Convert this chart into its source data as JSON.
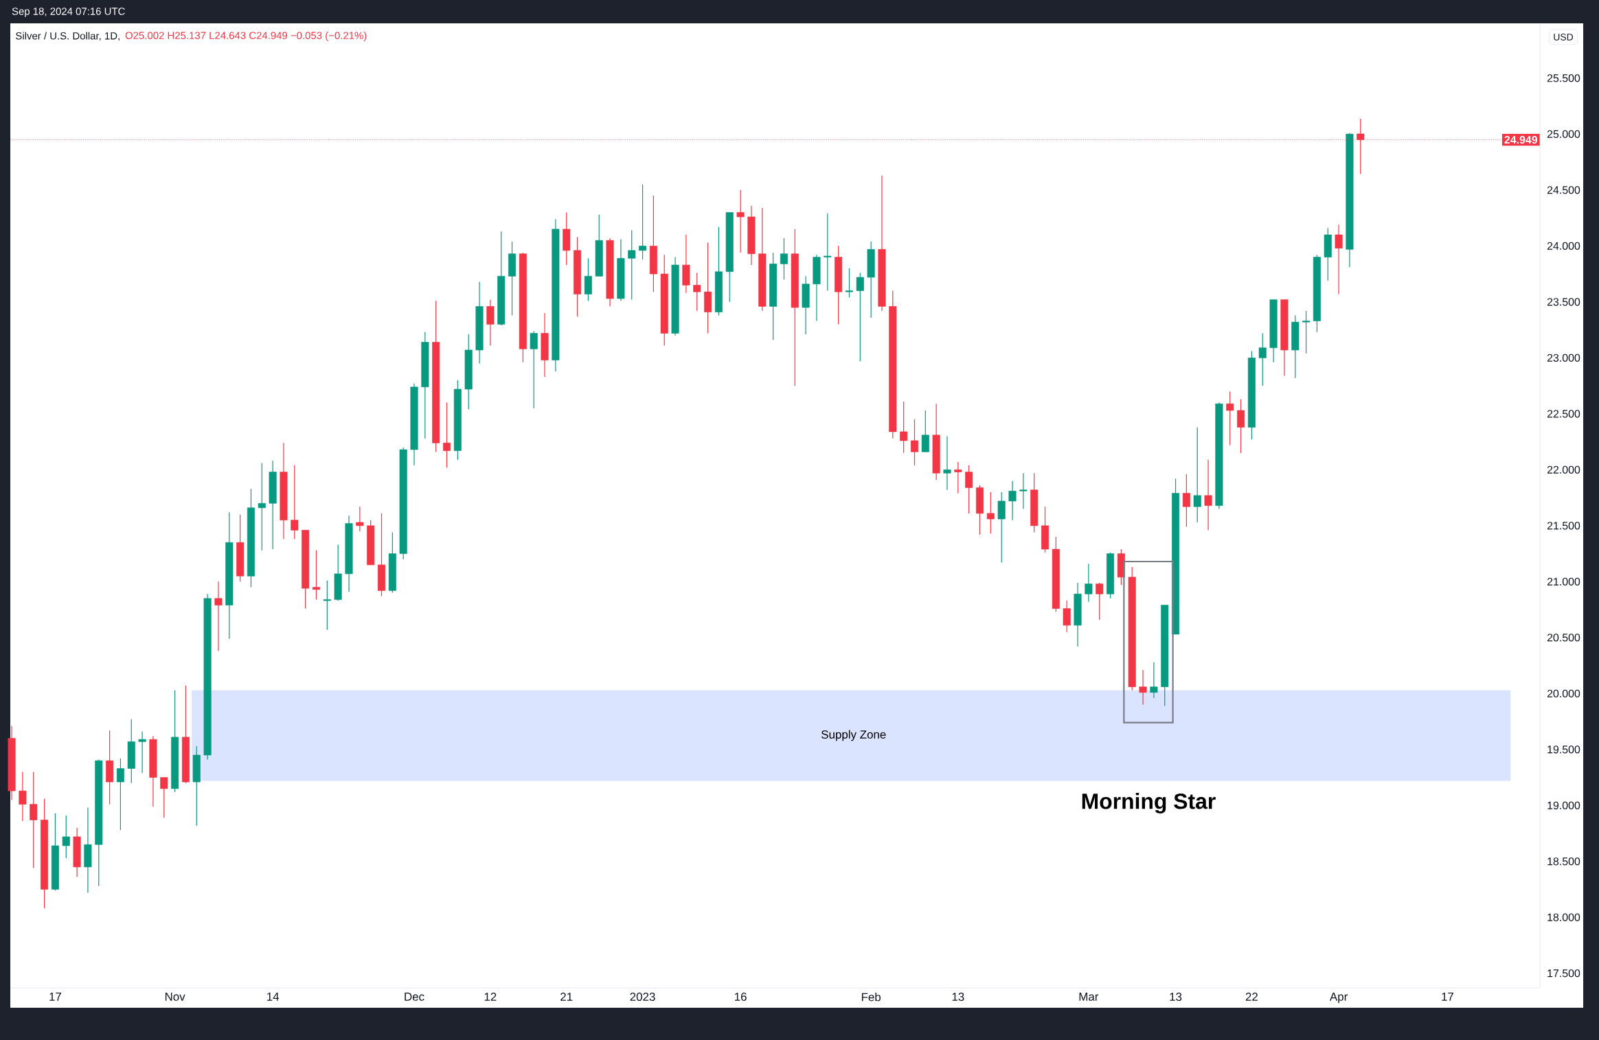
{
  "chart_data": {
    "type": "candlestick",
    "title": "Silver / U.S. Dollar, 1D,",
    "subtitle": "O25.002 H25.137 L24.643 C24.949 −0.053 (−0.21%)",
    "ylabel": "USD",
    "annotations": [
      "Sep 18, 2024 07:16 UTC",
      "Morning Star"
    ],
    "categories": [
      null,
      null,
      null,
      null,
      "17",
      null,
      null,
      null,
      null,
      null,
      null,
      null,
      null,
      null,
      null,
      "Nov",
      null,
      null,
      null,
      null,
      null,
      null,
      null,
      null,
      "14",
      null,
      null,
      null,
      null,
      null,
      null,
      null,
      null,
      null,
      null,
      null,
      null,
      "Dec",
      null,
      null,
      null,
      null,
      null,
      null,
      "12",
      null,
      null,
      null,
      null,
      null,
      null,
      "21",
      null,
      null,
      null,
      null,
      null,
      null,
      "2023",
      null,
      null,
      null,
      null,
      null,
      null,
      null,
      null,
      "16",
      null,
      null,
      null,
      null,
      null,
      null,
      null,
      null,
      null,
      null,
      null,
      "Feb",
      null,
      null,
      null,
      null,
      null,
      null,
      null,
      "13",
      null,
      null,
      null,
      null,
      null,
      null,
      null,
      null,
      null,
      null,
      null,
      "Mar",
      null,
      null,
      null,
      null,
      null,
      null,
      null,
      "13",
      null,
      null,
      null,
      null,
      null,
      null,
      "22",
      null,
      null,
      null,
      null,
      null,
      null,
      null,
      "Apr",
      null,
      null,
      null,
      null,
      null,
      null,
      null,
      null,
      null,
      "17",
      null,
      null,
      null,
      null,
      null,
      null,
      null,
      null
    ],
    "ohlc": [
      [
        19.6,
        19.71,
        19.05,
        19.13
      ],
      [
        19.13,
        19.3,
        18.86,
        19.01
      ],
      [
        19.01,
        19.3,
        18.44,
        18.87
      ],
      [
        18.87,
        19.06,
        18.08,
        18.25
      ],
      [
        18.25,
        18.93,
        18.24,
        18.64
      ],
      [
        18.64,
        18.91,
        18.53,
        18.72
      ],
      [
        18.72,
        18.8,
        18.36,
        18.45
      ],
      [
        18.45,
        18.98,
        18.22,
        18.65
      ],
      [
        18.65,
        19.41,
        18.28,
        19.4
      ],
      [
        19.4,
        19.67,
        19.01,
        19.21
      ],
      [
        19.21,
        19.42,
        18.78,
        19.33
      ],
      [
        19.33,
        19.77,
        19.2,
        19.57
      ],
      [
        19.57,
        19.66,
        19.29,
        19.59
      ],
      [
        19.59,
        19.62,
        18.99,
        19.25
      ],
      [
        19.25,
        19.25,
        18.89,
        19.15
      ],
      [
        19.15,
        20.03,
        19.12,
        19.61
      ],
      [
        19.61,
        20.07,
        19.2,
        19.21
      ],
      [
        19.21,
        19.53,
        18.82,
        19.45
      ],
      [
        19.45,
        20.89,
        19.41,
        20.85
      ],
      [
        20.85,
        21.0,
        20.38,
        20.79
      ],
      [
        20.79,
        21.62,
        20.49,
        21.35
      ],
      [
        21.35,
        21.6,
        21.0,
        21.05
      ],
      [
        21.05,
        21.83,
        20.95,
        21.66
      ],
      [
        21.66,
        22.06,
        21.28,
        21.7
      ],
      [
        21.7,
        22.08,
        21.29,
        21.98
      ],
      [
        21.98,
        22.24,
        21.38,
        21.55
      ],
      [
        21.55,
        22.04,
        21.38,
        21.46
      ],
      [
        21.46,
        21.46,
        20.76,
        20.94
      ],
      [
        20.95,
        21.28,
        20.84,
        20.93
      ],
      [
        20.83,
        21.01,
        20.57,
        20.84
      ],
      [
        20.84,
        21.33,
        20.83,
        21.07
      ],
      [
        21.07,
        21.59,
        20.91,
        21.52
      ],
      [
        21.53,
        21.67,
        21.45,
        21.5
      ],
      [
        21.5,
        21.55,
        21.15,
        21.15
      ],
      [
        21.15,
        21.61,
        20.87,
        20.92
      ],
      [
        20.92,
        21.44,
        20.9,
        21.25
      ],
      [
        21.25,
        22.2,
        21.2,
        22.18
      ],
      [
        22.18,
        22.77,
        22.04,
        22.74
      ],
      [
        22.74,
        23.23,
        22.28,
        23.14
      ],
      [
        23.14,
        23.51,
        22.16,
        22.24
      ],
      [
        22.24,
        22.6,
        22.02,
        22.17
      ],
      [
        22.17,
        22.8,
        22.09,
        22.72
      ],
      [
        22.72,
        23.21,
        22.54,
        23.07
      ],
      [
        23.07,
        23.68,
        22.95,
        23.46
      ],
      [
        23.46,
        23.52,
        23.11,
        23.3
      ],
      [
        23.3,
        24.13,
        23.29,
        23.73
      ],
      [
        23.73,
        24.04,
        23.38,
        23.93
      ],
      [
        23.93,
        23.94,
        22.96,
        23.08
      ],
      [
        23.08,
        23.24,
        22.55,
        23.22
      ],
      [
        23.22,
        23.4,
        22.83,
        22.98
      ],
      [
        22.98,
        24.24,
        22.88,
        24.15
      ],
      [
        24.15,
        24.3,
        23.83,
        23.96
      ],
      [
        23.96,
        24.08,
        23.37,
        23.57
      ],
      [
        23.57,
        23.89,
        23.51,
        23.73
      ],
      [
        23.73,
        24.28,
        23.73,
        24.05
      ],
      [
        24.05,
        24.07,
        23.46,
        23.53
      ],
      [
        23.53,
        24.06,
        23.51,
        23.89
      ],
      [
        23.89,
        24.14,
        23.52,
        23.96
      ],
      [
        23.96,
        24.55,
        23.88,
        24.0
      ],
      [
        24.0,
        24.45,
        23.59,
        23.75
      ],
      [
        23.75,
        23.92,
        23.11,
        23.22
      ],
      [
        23.22,
        23.9,
        23.2,
        23.83
      ],
      [
        23.83,
        24.1,
        23.58,
        23.65
      ],
      [
        23.65,
        23.76,
        23.42,
        23.59
      ],
      [
        23.59,
        24.03,
        23.22,
        23.41
      ],
      [
        23.41,
        24.17,
        23.38,
        23.77
      ],
      [
        23.77,
        24.3,
        23.5,
        24.3
      ],
      [
        24.3,
        24.5,
        23.94,
        24.26
      ],
      [
        24.26,
        24.36,
        23.83,
        23.93
      ],
      [
        23.93,
        24.34,
        23.42,
        23.46
      ],
      [
        23.46,
        23.94,
        23.16,
        23.84
      ],
      [
        23.84,
        24.07,
        23.7,
        23.93
      ],
      [
        23.93,
        24.15,
        22.75,
        23.45
      ],
      [
        23.45,
        23.73,
        23.21,
        23.66
      ],
      [
        23.66,
        23.92,
        23.33,
        23.9
      ],
      [
        23.9,
        24.29,
        23.6,
        23.91
      ],
      [
        23.9,
        24.0,
        23.3,
        23.59
      ],
      [
        23.59,
        23.8,
        23.54,
        23.6
      ],
      [
        23.6,
        23.76,
        22.97,
        23.72
      ],
      [
        23.72,
        24.04,
        23.36,
        23.97
      ],
      [
        23.97,
        24.63,
        23.42,
        23.46
      ],
      [
        23.46,
        23.6,
        22.28,
        22.34
      ],
      [
        22.34,
        22.61,
        22.15,
        22.26
      ],
      [
        22.26,
        22.45,
        22.04,
        22.16
      ],
      [
        22.16,
        22.53,
        22.16,
        22.31
      ],
      [
        22.31,
        22.59,
        21.91,
        21.97
      ],
      [
        21.97,
        22.3,
        21.82,
        22.0
      ],
      [
        22.0,
        22.07,
        21.79,
        21.98
      ],
      [
        21.98,
        22.04,
        21.61,
        21.84
      ],
      [
        21.84,
        21.86,
        21.42,
        21.61
      ],
      [
        21.61,
        21.8,
        21.43,
        21.56
      ],
      [
        21.56,
        21.8,
        21.17,
        21.72
      ],
      [
        21.72,
        21.9,
        21.55,
        21.81
      ],
      [
        21.81,
        21.97,
        21.65,
        21.82
      ],
      [
        21.82,
        21.97,
        21.44,
        21.5
      ],
      [
        21.5,
        21.67,
        21.26,
        21.29
      ],
      [
        21.29,
        21.4,
        20.73,
        20.76
      ],
      [
        20.76,
        20.83,
        20.55,
        20.61
      ],
      [
        20.61,
        20.99,
        20.42,
        20.89
      ],
      [
        20.89,
        21.16,
        20.82,
        20.98
      ],
      [
        20.98,
        20.99,
        20.66,
        20.89
      ],
      [
        20.89,
        21.26,
        20.85,
        21.25
      ],
      [
        21.25,
        21.29,
        20.97,
        21.04
      ],
      [
        21.04,
        21.13,
        20.03,
        20.06
      ],
      [
        20.06,
        20.21,
        19.9,
        20.01
      ],
      [
        20.01,
        20.28,
        19.96,
        20.06
      ],
      [
        20.06,
        20.79,
        19.89,
        20.79
      ],
      [
        20.53,
        21.92,
        20.53,
        21.79
      ],
      [
        21.79,
        21.96,
        21.49,
        21.67
      ],
      [
        21.67,
        22.38,
        21.53,
        21.77
      ],
      [
        21.77,
        22.09,
        21.46,
        21.68
      ],
      [
        21.68,
        22.6,
        21.65,
        22.59
      ],
      [
        22.59,
        22.7,
        22.22,
        22.53
      ],
      [
        22.53,
        22.63,
        22.15,
        22.38
      ],
      [
        22.38,
        23.06,
        22.27,
        23.0
      ],
      [
        23.0,
        23.22,
        22.75,
        23.09
      ],
      [
        23.09,
        23.52,
        22.96,
        23.52
      ],
      [
        23.52,
        23.52,
        22.84,
        23.07
      ],
      [
        23.07,
        23.38,
        22.82,
        23.32
      ],
      [
        23.32,
        23.42,
        23.04,
        23.33
      ],
      [
        23.33,
        23.92,
        23.23,
        23.9
      ],
      [
        23.9,
        24.16,
        23.69,
        24.1
      ],
      [
        24.1,
        24.19,
        23.57,
        23.98
      ],
      [
        23.97,
        25.01,
        23.81,
        25.0
      ],
      [
        25.002,
        25.137,
        24.643,
        24.949
      ],
      null,
      null,
      null,
      null,
      null,
      null,
      null,
      null,
      null,
      null,
      null,
      null,
      null,
      null,
      null,
      null
    ],
    "colors": [
      "#f23645",
      "#f23645",
      "#f23645",
      "#f23645",
      "#089981",
      "#089981",
      "#f23645",
      "#089981",
      "#089981",
      "#f23645",
      "#089981",
      "#089981",
      "#089981",
      "#f23645",
      "#f23645",
      "#089981",
      "#f23645",
      "#089981",
      "#089981",
      "#f23645",
      "#089981",
      "#f23645",
      "#089981",
      "#089981",
      "#089981",
      "#f23645",
      "#f23645",
      "#f23645",
      "#f23645",
      "#089981",
      "#089981",
      "#089981",
      "#f23645",
      "#f23645",
      "#f23645",
      "#089981",
      "#089981",
      "#089981",
      "#089981",
      "#f23645",
      "#f23645",
      "#089981",
      "#089981",
      "#089981",
      "#f23645",
      "#089981",
      "#089981",
      "#f23645",
      "#089981",
      "#f23645",
      "#089981",
      "#f23645",
      "#f23645",
      "#089981",
      "#089981",
      "#f23645",
      "#089981",
      "#089981",
      "#089981",
      "#f23645",
      "#f23645",
      "#089981",
      "#f23645",
      "#f23645",
      "#f23645",
      "#089981",
      "#089981",
      "#f23645",
      "#f23645",
      "#f23645",
      "#089981",
      "#089981",
      "#f23645",
      "#089981",
      "#089981",
      "#089981",
      "#f23645",
      "#089981",
      "#089981",
      "#089981",
      "#f23645",
      "#f23645",
      "#f23645",
      "#f23645",
      "#089981",
      "#f23645",
      "#089981",
      "#f23645",
      "#f23645",
      "#f23645",
      "#f23645",
      "#089981",
      "#089981",
      "#089981",
      "#f23645",
      "#f23645",
      "#f23645",
      "#f23645",
      "#089981",
      "#089981",
      "#f23645",
      "#089981",
      "#f23645",
      "#f23645",
      "#f23645",
      "#089981",
      "#089981",
      "#089981",
      "#f23645",
      "#089981",
      "#f23645",
      "#089981",
      "#f23645",
      "#f23645",
      "#089981",
      "#089981",
      "#089981",
      "#f23645",
      "#089981",
      "#089981",
      "#089981",
      "#089981",
      "#f23645",
      "#089981",
      "#f23645",
      null,
      null,
      null,
      null,
      null,
      null,
      null,
      null,
      null,
      null,
      null,
      null,
      null,
      null,
      null,
      null
    ],
    "ylim": [
      17.37,
      25.99
    ],
    "yticks": [
      {
        "value": 17.5,
        "label": "17.500"
      },
      {
        "value": 18.0,
        "label": "18.000"
      },
      {
        "value": 18.5,
        "label": "18.500"
      },
      {
        "value": 19.0,
        "label": "19.000"
      },
      {
        "value": 19.5,
        "label": "19.500"
      },
      {
        "value": 20.0,
        "label": "20.000"
      },
      {
        "value": 20.5,
        "label": "20.500"
      },
      {
        "value": 21.0,
        "label": "21.000"
      },
      {
        "value": 21.5,
        "label": "21.500"
      },
      {
        "value": 22.0,
        "label": "22.000"
      },
      {
        "value": 22.5,
        "label": "22.500"
      },
      {
        "value": 23.0,
        "label": "23.000"
      },
      {
        "value": 23.5,
        "label": "23.500"
      },
      {
        "value": 24.0,
        "label": "24.000"
      },
      {
        "value": 24.5,
        "label": "24.500"
      },
      {
        "value": 25.0,
        "label": "25.000"
      },
      {
        "value": 25.5,
        "label": "25.500"
      }
    ],
    "ref_lines": [
      {
        "axis": "y",
        "value": 24.949,
        "label": "24.949",
        "color": "#f23645",
        "line_style": "dotted"
      }
    ],
    "bands": [
      {
        "axis": "y",
        "from": 19.22,
        "to": 20.03,
        "label": "Supply Zone",
        "color": "#dbe4fe"
      }
    ]
  }
}
